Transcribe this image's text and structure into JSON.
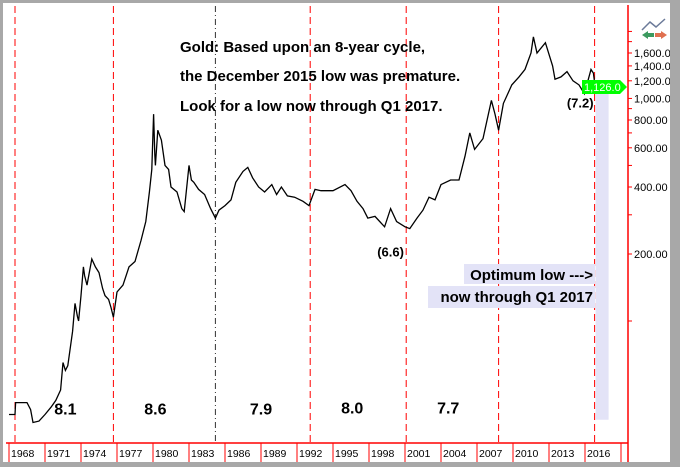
{
  "chart_data": {
    "type": "line",
    "title_lines": [
      "Gold: Based upon an 8-year cycle,",
      "the December 2015 low was premature.",
      "Look for a low now through Q1 2017."
    ],
    "yscale": "log",
    "ylim": [
      33,
      2300
    ],
    "xlim": [
      1967.9,
      2019.2
    ],
    "y_tick_labels": [
      {
        "value": 1600,
        "label": "1,600.00"
      },
      {
        "value": 1400,
        "label": "1,400.00"
      },
      {
        "value": 1200,
        "label": "1,200.00"
      },
      {
        "value": 1000,
        "label": "1,000.00"
      },
      {
        "value": 800,
        "label": "800.00"
      },
      {
        "value": 600,
        "label": "600.00"
      },
      {
        "value": 400,
        "label": "400.00"
      },
      {
        "value": 200,
        "label": "200.00"
      }
    ],
    "x_tick_labels": [
      "1968",
      "1971",
      "1974",
      "1977",
      "1980",
      "1983",
      "1986",
      "1989",
      "1992",
      "1995",
      "1998",
      "2001",
      "2004",
      "2007",
      "2010",
      "2013",
      "2016"
    ],
    "last_price": {
      "value": 1126,
      "label": "1,126.0"
    },
    "cycle_lines": [
      1968.5,
      1976.7,
      1985.2,
      1993.1,
      2001.1,
      2008.8,
      2016.8
    ],
    "cycle_lengths": [
      {
        "label": "8.1",
        "x": 1972.7,
        "y": 40
      },
      {
        "label": "8.6",
        "x": 1980.2,
        "y": 40
      },
      {
        "label": "7.9",
        "x": 1989.0,
        "y": 40
      },
      {
        "label": "8.0",
        "x": 1996.6,
        "y": 40.5
      },
      {
        "label": "7.7",
        "x": 2004.6,
        "y": 40.5
      }
    ],
    "low_labels": [
      {
        "label": "(6.6)",
        "x": 1999.8,
        "y": 205
      },
      {
        "label": "(7.2)",
        "x": 2015.6,
        "y": 1000
      }
    ],
    "optimum_zone": {
      "label_lines": [
        "Optimum low --->",
        "now through Q1 2017"
      ],
      "x_range": [
        2016.8,
        2018.0
      ]
    },
    "series": [
      {
        "color": "#000000",
        "points": [
          [
            1968.0,
            38
          ],
          [
            1968.5,
            38
          ],
          [
            1968.55,
            43
          ],
          [
            1969.5,
            43
          ],
          [
            1969.8,
            40
          ],
          [
            1970.0,
            35
          ],
          [
            1970.5,
            35.5
          ],
          [
            1971.0,
            38
          ],
          [
            1971.5,
            41
          ],
          [
            1971.9,
            44
          ],
          [
            1972.3,
            49
          ],
          [
            1972.5,
            65
          ],
          [
            1972.7,
            60
          ],
          [
            1972.9,
            63
          ],
          [
            1973.3,
            90
          ],
          [
            1973.5,
            120
          ],
          [
            1973.7,
            105
          ],
          [
            1973.8,
            100
          ],
          [
            1974.0,
            130
          ],
          [
            1974.2,
            175
          ],
          [
            1974.3,
            160
          ],
          [
            1974.5,
            145
          ],
          [
            1974.9,
            190
          ],
          [
            1975.2,
            175
          ],
          [
            1975.5,
            165
          ],
          [
            1975.8,
            140
          ],
          [
            1976.0,
            130
          ],
          [
            1976.3,
            125
          ],
          [
            1976.5,
            115
          ],
          [
            1976.7,
            104
          ],
          [
            1977.0,
            135
          ],
          [
            1977.5,
            145
          ],
          [
            1978.0,
            175
          ],
          [
            1978.5,
            185
          ],
          [
            1979.0,
            230
          ],
          [
            1979.4,
            280
          ],
          [
            1979.7,
            380
          ],
          [
            1979.9,
            480
          ],
          [
            1980.05,
            850
          ],
          [
            1980.15,
            560
          ],
          [
            1980.2,
            500
          ],
          [
            1980.4,
            720
          ],
          [
            1980.7,
            650
          ],
          [
            1981.0,
            500
          ],
          [
            1981.3,
            480
          ],
          [
            1981.5,
            400
          ],
          [
            1982.0,
            380
          ],
          [
            1982.4,
            320
          ],
          [
            1982.6,
            310
          ],
          [
            1983.0,
            500
          ],
          [
            1983.2,
            430
          ],
          [
            1983.4,
            420
          ],
          [
            1983.8,
            390
          ],
          [
            1984.3,
            370
          ],
          [
            1984.8,
            320
          ],
          [
            1985.2,
            290
          ],
          [
            1985.5,
            315
          ],
          [
            1986.0,
            330
          ],
          [
            1986.5,
            350
          ],
          [
            1986.9,
            420
          ],
          [
            1987.5,
            470
          ],
          [
            1987.9,
            490
          ],
          [
            1988.3,
            440
          ],
          [
            1988.8,
            400
          ],
          [
            1989.3,
            380
          ],
          [
            1989.9,
            410
          ],
          [
            1990.3,
            370
          ],
          [
            1990.7,
            400
          ],
          [
            1991.2,
            365
          ],
          [
            1991.8,
            360
          ],
          [
            1992.5,
            345
          ],
          [
            1993.0,
            330
          ],
          [
            1993.5,
            390
          ],
          [
            1994.0,
            385
          ],
          [
            1995.0,
            385
          ],
          [
            1996.0,
            410
          ],
          [
            1996.5,
            385
          ],
          [
            1997.0,
            345
          ],
          [
            1997.5,
            320
          ],
          [
            1997.9,
            290
          ],
          [
            1998.5,
            295
          ],
          [
            1999.3,
            265
          ],
          [
            1999.8,
            320
          ],
          [
            2000.3,
            280
          ],
          [
            2001.0,
            265
          ],
          [
            2001.4,
            260
          ],
          [
            2002.0,
            290
          ],
          [
            2002.5,
            315
          ],
          [
            2003.0,
            360
          ],
          [
            2003.5,
            350
          ],
          [
            2004.0,
            410
          ],
          [
            2004.8,
            430
          ],
          [
            2005.5,
            430
          ],
          [
            2006.0,
            550
          ],
          [
            2006.4,
            700
          ],
          [
            2006.8,
            590
          ],
          [
            2007.5,
            660
          ],
          [
            2008.2,
            980
          ],
          [
            2008.5,
            850
          ],
          [
            2008.8,
            720
          ],
          [
            2009.2,
            950
          ],
          [
            2009.9,
            1150
          ],
          [
            2010.5,
            1250
          ],
          [
            2011.0,
            1350
          ],
          [
            2011.5,
            1600
          ],
          [
            2011.7,
            1890
          ],
          [
            2012.0,
            1600
          ],
          [
            2012.7,
            1780
          ],
          [
            2013.3,
            1400
          ],
          [
            2013.5,
            1220
          ],
          [
            2014.0,
            1250
          ],
          [
            2014.5,
            1320
          ],
          [
            2015.0,
            1200
          ],
          [
            2015.5,
            1150
          ],
          [
            2015.95,
            1050
          ],
          [
            2016.5,
            1350
          ],
          [
            2016.7,
            1300
          ],
          [
            2016.85,
            1126
          ]
        ]
      }
    ],
    "colors": {
      "cycle_line": "#ff0000",
      "price_tag": "#00ff00",
      "axis": "#ff0000",
      "zone": "#e3e3f7"
    }
  }
}
